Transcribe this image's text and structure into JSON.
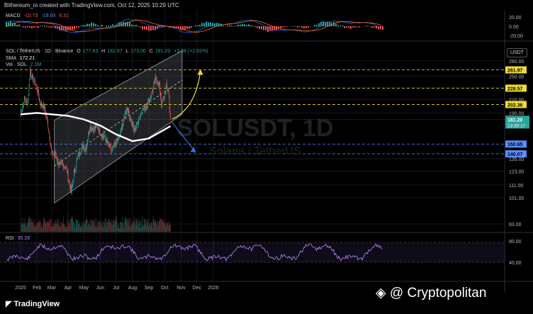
{
  "header": {
    "created_by": "Bithereum_io created with TradingView.com, Oct 12, 2025 10:29 UTC"
  },
  "macd": {
    "label": "MACD",
    "values": [
      "-10.73",
      "-19.03",
      "8.31"
    ],
    "axis_labels": [
      "20.00",
      "0.00",
      "-20.00"
    ]
  },
  "main": {
    "symbol": "SOL / TetherUS · 1D · Binance",
    "open_label": "O",
    "open": "177.63",
    "high_label": "H",
    "high": "182.97",
    "low_label": "L",
    "low": "173.00",
    "close_label": "C",
    "close": "181.20",
    "change": "+3.58 (+2.02%)",
    "sma_label": "SMA",
    "sma_value": "172.21",
    "vol_label": "Vol · SOL",
    "vol_value": "2.1M",
    "currency": "USDT",
    "watermark_symbol": "SOLUSDT, 1D",
    "watermark_name": "Solana / TetherUS"
  },
  "rsi": {
    "label": "RSI",
    "value": "35.28",
    "axis_labels": [
      "80.00",
      "40.00"
    ]
  },
  "chart_data": {
    "type": "candlestick",
    "symbol": "SOLUSDT",
    "interval": "1D",
    "y_axis_ticks": [
      280,
      250,
      230,
      210,
      190,
      181.2,
      150.65,
      135,
      123,
      111,
      101,
      83
    ],
    "price_levels": [
      {
        "label": "261.97",
        "value": 261.97,
        "color": "#f0dc30"
      },
      {
        "label": "228.57",
        "value": 228.57,
        "color": "#f0dc30"
      },
      {
        "label": "202.36",
        "value": 202.36,
        "color": "#f0dc30"
      },
      {
        "label": "150.65",
        "value": 150.65,
        "color": "#5b8cff"
      },
      {
        "label": "140.07",
        "value": 140.07,
        "color": "#5b8cff"
      }
    ],
    "last_price": {
      "label": "181.20",
      "countdown": "13:30:17",
      "value": 181.2
    },
    "x_ticks": [
      "2025",
      "Feb",
      "Mar",
      "Apr",
      "May",
      "Jun",
      "Jul",
      "Aug",
      "Sep",
      "Oct",
      "Nov",
      "Dec",
      "2026"
    ],
    "close_series": [
      {
        "date": "2025-01-01",
        "close": 189
      },
      {
        "date": "2025-01-08",
        "close": 210
      },
      {
        "date": "2025-01-15",
        "close": 205
      },
      {
        "date": "2025-01-19",
        "close": 261
      },
      {
        "date": "2025-01-24",
        "close": 245
      },
      {
        "date": "2025-01-31",
        "close": 232
      },
      {
        "date": "2025-02-07",
        "close": 205
      },
      {
        "date": "2025-02-15",
        "close": 198
      },
      {
        "date": "2025-02-22",
        "close": 172
      },
      {
        "date": "2025-03-01",
        "close": 140
      },
      {
        "date": "2025-03-08",
        "close": 140
      },
      {
        "date": "2025-03-15",
        "close": 128
      },
      {
        "date": "2025-03-22",
        "close": 130
      },
      {
        "date": "2025-03-29",
        "close": 125
      },
      {
        "date": "2025-04-07",
        "close": 105
      },
      {
        "date": "2025-04-14",
        "close": 126
      },
      {
        "date": "2025-04-21",
        "close": 139
      },
      {
        "date": "2025-04-28",
        "close": 148
      },
      {
        "date": "2025-05-05",
        "close": 146
      },
      {
        "date": "2025-05-12",
        "close": 172
      },
      {
        "date": "2025-05-19",
        "close": 168
      },
      {
        "date": "2025-05-26",
        "close": 173
      },
      {
        "date": "2025-06-02",
        "close": 163
      },
      {
        "date": "2025-06-09",
        "close": 158
      },
      {
        "date": "2025-06-16",
        "close": 150
      },
      {
        "date": "2025-06-23",
        "close": 142
      },
      {
        "date": "2025-06-30",
        "close": 152
      },
      {
        "date": "2025-07-07",
        "close": 158
      },
      {
        "date": "2025-07-14",
        "close": 177
      },
      {
        "date": "2025-07-21",
        "close": 198
      },
      {
        "date": "2025-07-28",
        "close": 182
      },
      {
        "date": "2025-08-04",
        "close": 166
      },
      {
        "date": "2025-08-11",
        "close": 178
      },
      {
        "date": "2025-08-18",
        "close": 193
      },
      {
        "date": "2025-08-25",
        "close": 198
      },
      {
        "date": "2025-09-01",
        "close": 208
      },
      {
        "date": "2025-09-08",
        "close": 224
      },
      {
        "date": "2025-09-14",
        "close": 246
      },
      {
        "date": "2025-09-21",
        "close": 232
      },
      {
        "date": "2025-09-25",
        "close": 201
      },
      {
        "date": "2025-09-30",
        "close": 215
      },
      {
        "date": "2025-10-04",
        "close": 232
      },
      {
        "date": "2025-10-08",
        "close": 222
      },
      {
        "date": "2025-10-10",
        "close": 200
      },
      {
        "date": "2025-10-12",
        "close": 181.2
      }
    ],
    "sma_series": [
      {
        "date": "2025-01-01",
        "value": 188
      },
      {
        "date": "2025-02-01",
        "value": 190
      },
      {
        "date": "2025-03-01",
        "value": 188
      },
      {
        "date": "2025-04-01",
        "value": 186
      },
      {
        "date": "2025-05-01",
        "value": 181
      },
      {
        "date": "2025-06-01",
        "value": 173
      },
      {
        "date": "2025-07-01",
        "value": 162
      },
      {
        "date": "2025-08-01",
        "value": 154
      },
      {
        "date": "2025-09-01",
        "value": 157
      },
      {
        "date": "2025-10-01",
        "value": 168
      },
      {
        "date": "2025-10-12",
        "value": 172.21
      }
    ],
    "channel": {
      "upper": [
        {
          "date": "2025-03-06",
          "price": 180
        },
        {
          "date": "2025-11-03",
          "price": 302
        }
      ],
      "lower": [
        {
          "date": "2025-03-06",
          "price": 97
        },
        {
          "date": "2025-11-03",
          "price": 188
        }
      ],
      "mid": [
        {
          "date": "2025-03-06",
          "price": 128
        },
        {
          "date": "2025-11-03",
          "price": 243
        }
      ]
    },
    "projections": [
      {
        "direction": "up",
        "color": "#f0dc30"
      },
      {
        "direction": "down",
        "color": "#3b6fd8"
      }
    ]
  }
}
